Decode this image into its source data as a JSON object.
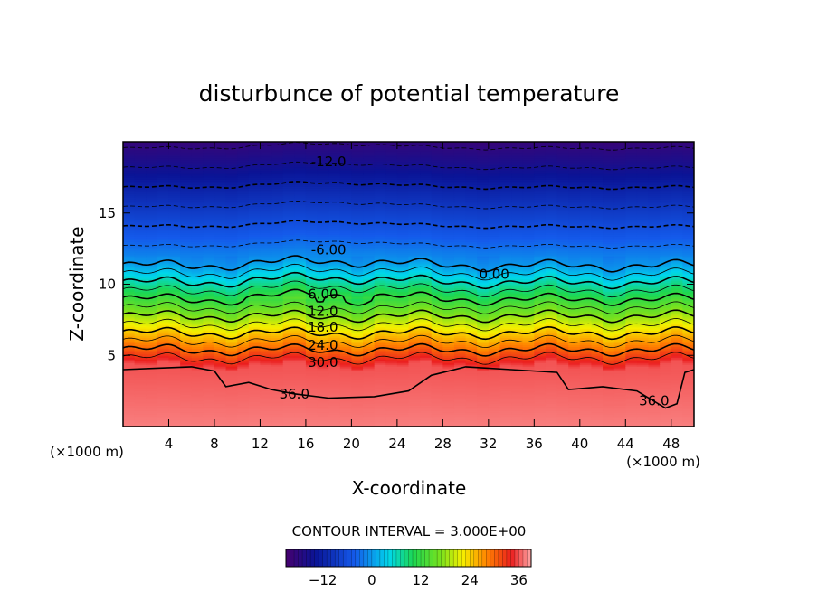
{
  "chart_data": {
    "type": "contour",
    "title": "disturbunce of potential temperature",
    "xlabel": "X-coordinate",
    "ylabel": "Z-coordinate",
    "x_unit": "(×1000 m)",
    "z_unit": "(×1000 m)",
    "xlim": [
      0,
      50
    ],
    "ylim": [
      0,
      20
    ],
    "x_ticks": [
      4,
      8,
      12,
      16,
      20,
      24,
      28,
      32,
      36,
      40,
      44,
      48
    ],
    "y_ticks": [
      5,
      10,
      15
    ],
    "contour_interval_label": "CONTOUR INTERVAL = 3.000E+00",
    "contour_interval": 3.0,
    "colorbar": {
      "range": [
        -21,
        39
      ],
      "ticks": [
        -12,
        0,
        12,
        24,
        36
      ]
    },
    "labeled_contours": [
      {
        "label": "-12.0",
        "value": -12,
        "x": 18,
        "z": 18.6
      },
      {
        "label": "-6.00",
        "value": -6,
        "x": 18,
        "z": 12.4
      },
      {
        "label": "0.00",
        "value": 0,
        "x": 32.5,
        "z": 10.7
      },
      {
        "label": "6.00",
        "value": 6,
        "x": 17.5,
        "z": 9.3
      },
      {
        "label": "12.0",
        "value": 12,
        "x": 17.5,
        "z": 8.1
      },
      {
        "label": "18.0",
        "value": 18,
        "x": 17.5,
        "z": 7.0
      },
      {
        "label": "24.0",
        "value": 24,
        "x": 17.5,
        "z": 5.7
      },
      {
        "label": "30.0",
        "value": 30,
        "x": 17.5,
        "z": 4.5
      },
      {
        "label": "36.0",
        "value": 36,
        "x": 15,
        "z": 2.3
      },
      {
        "label": "36.0",
        "value": 36,
        "x": 46.5,
        "z": 1.8
      }
    ]
  }
}
